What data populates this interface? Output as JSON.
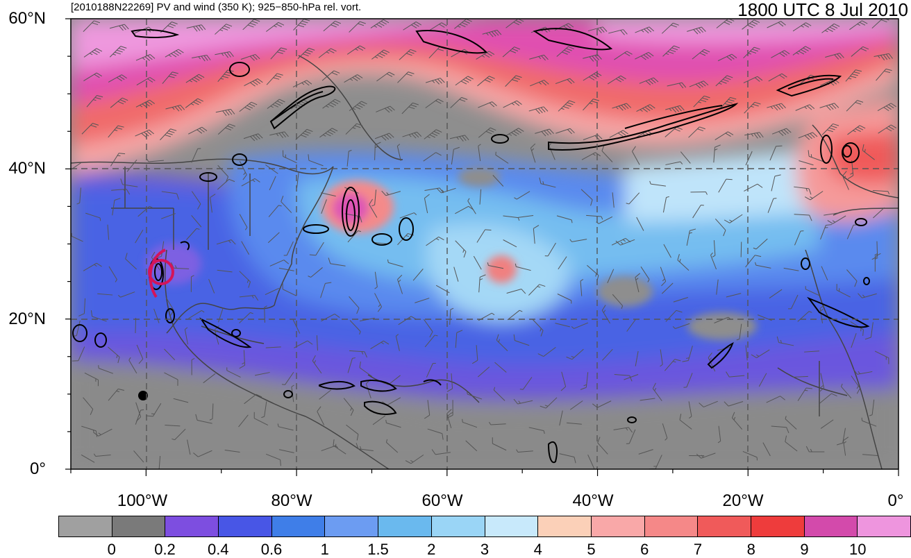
{
  "header": {
    "left_title": "[2010188N22269] PV and wind (350 K); 925−850-hPa rel. vort.",
    "right_title": "1800 UTC 8 Jul 2010"
  },
  "map": {
    "lat_labels": [
      "60°N",
      "40°N",
      "20°N",
      "0°"
    ],
    "lon_labels": [
      "100°W",
      "80°W",
      "60°W",
      "40°W",
      "20°W",
      "0°"
    ],
    "lat_range": [
      0,
      60
    ],
    "lon_range": [
      -110,
      0
    ],
    "dashed_grid": true,
    "storm_marker_color": "#d4145a"
  },
  "colorbar": {
    "labels": [
      "0",
      "0.2",
      "0.4",
      "0.6",
      "1",
      "1.5",
      "2",
      "3",
      "4",
      "5",
      "6",
      "7",
      "8",
      "9",
      "10"
    ],
    "colors": [
      "#a0a0a0",
      "#7a7a7a",
      "#7d4ee0",
      "#4856e6",
      "#3f7ee8",
      "#6c9cf2",
      "#6ab9ee",
      "#9ad5f6",
      "#c8e9fb",
      "#fbd0b8",
      "#f9a8a8",
      "#f58888",
      "#f05a5a",
      "#ee3c3c",
      "#d34aab",
      "#ee95de"
    ]
  }
}
